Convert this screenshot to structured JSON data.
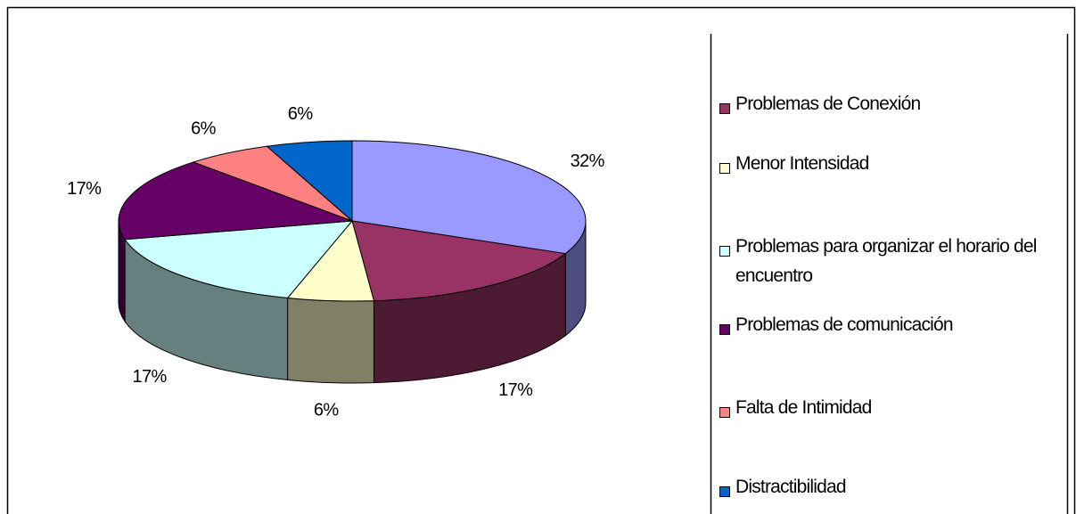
{
  "chart_data": {
    "type": "pie",
    "categories": [
      null,
      "Problemas de Conexión",
      "Menor Intensidad",
      "Problemas para organizar el horario del encuentro",
      "Problemas de comunicación",
      "Falta de Intimidad",
      "Distractibilidad"
    ],
    "values": [
      32,
      17,
      6,
      17,
      17,
      6,
      6
    ],
    "value_labels": [
      "32%",
      "17%",
      "6%",
      "17%",
      "17%",
      "6%",
      "6%"
    ],
    "colors": [
      "#9999ff",
      "#993366",
      "#ffffcc",
      "#ccffff",
      "#660066",
      "#ff8080",
      "#0066cc"
    ],
    "legend": "right"
  }
}
